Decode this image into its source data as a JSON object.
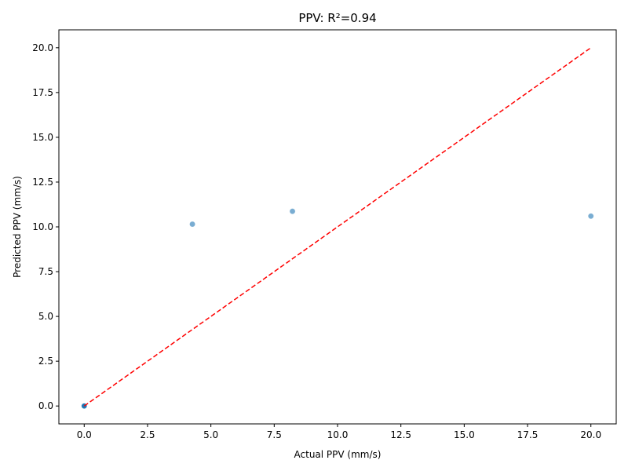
{
  "chart_data": {
    "type": "scatter",
    "title": "PPV: R²=0.94",
    "xlabel": "Actual PPV (mm/s)",
    "ylabel": "Predicted PPV (mm/s)",
    "xlim": [
      -1.0,
      21.0
    ],
    "ylim": [
      -1.0,
      21.0
    ],
    "xticks": [
      0.0,
      2.5,
      5.0,
      7.5,
      10.0,
      12.5,
      15.0,
      17.5,
      20.0
    ],
    "yticks": [
      0.0,
      2.5,
      5.0,
      7.5,
      10.0,
      12.5,
      15.0,
      17.5,
      20.0
    ],
    "xtick_labels": [
      "0.0",
      "2.5",
      "5.0",
      "7.5",
      "10.0",
      "12.5",
      "15.0",
      "17.5",
      "20.0"
    ],
    "ytick_labels": [
      "0.0",
      "2.5",
      "5.0",
      "7.5",
      "10.0",
      "12.5",
      "15.0",
      "17.5",
      "20.0"
    ],
    "grid": false,
    "series": [
      {
        "color": "#1f77b4",
        "x": [
          0.0,
          0.0,
          0.0,
          0.0,
          0.0,
          4.27,
          8.22,
          20.0
        ],
        "y": [
          0.0,
          0.0,
          0.0,
          0.0,
          0.0,
          10.15,
          10.87,
          10.6
        ]
      }
    ],
    "reference_line": {
      "x": [
        0.0,
        20.0
      ],
      "y": [
        0.0,
        20.0
      ],
      "color": "#ff0000",
      "style": "dashed"
    }
  }
}
